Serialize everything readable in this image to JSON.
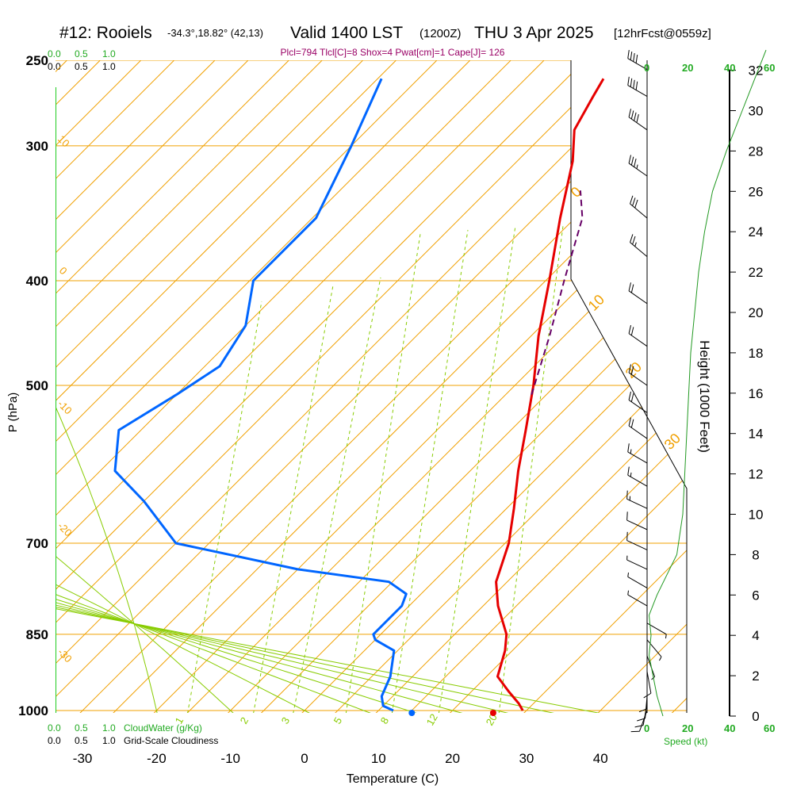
{
  "header": {
    "station": "#12: Rooiels",
    "coords": "-34.3°,18.82° (42,13)",
    "valid": "Valid 1400 LST",
    "zulu": "(1200Z)",
    "date": "THU 3 Apr 2025",
    "forecast": "[12hrFcst@0559z]",
    "indices": "Plcl=794 Tlcl[C]=8 Shox=4 Pwat[cm]=1 Cape[J]= 126"
  },
  "colors": {
    "temperature": "#e60000",
    "dewpoint": "#0066ff",
    "parcel": "#660066",
    "isotherm": "#f0a000",
    "dry_adiabat": "#88cc00",
    "mixing_ratio": "#88cc00",
    "index_text": "#990066",
    "green_label": "#22aa22",
    "height_curve": "#229922"
  },
  "labels": {
    "top_scale_green": [
      "0.0",
      "0.5",
      "1.0"
    ],
    "top_scale_black": [
      "0.0",
      "0.5",
      "1.0"
    ],
    "bottom_scale_green": [
      "0.0",
      "0.5",
      "1.0"
    ],
    "bottom_scale_black": [
      "0.0",
      "0.5",
      "1.0"
    ],
    "cloudwater": "CloudWater (g/Kg)",
    "cloudiness": "Grid-Scale Cloudiness",
    "speed": "Speed (kt)",
    "speed_ticks_green": [
      "20",
      "40",
      "60"
    ],
    "speed_tick_zero": "0",
    "speed_bottom_ticks": [
      "0",
      "20",
      "40",
      "60"
    ]
  },
  "chart_data": {
    "type": "skew-t",
    "xlabel": "Temperature (C)",
    "ylabel": "P (hPa)",
    "y2label": "Height (1000 Feet)",
    "x_ticks": [
      -30,
      -20,
      -10,
      0,
      10,
      20,
      30,
      40
    ],
    "x_range": [
      -34,
      46
    ],
    "p_ticks": [
      250,
      300,
      400,
      500,
      700,
      850,
      1000
    ],
    "p_range": [
      1015,
      250
    ],
    "height_ticks": [
      0,
      2,
      4,
      6,
      8,
      10,
      12,
      14,
      16,
      18,
      20,
      22,
      24,
      26,
      28,
      30,
      32
    ],
    "isotherm_labels": [
      "0",
      "10",
      "20",
      "30",
      "-10",
      "-20",
      "-30",
      "10",
      "0"
    ],
    "mixing_ratio_labels": [
      "1",
      "2",
      "3",
      "5",
      "8",
      "12",
      "20"
    ],
    "temperature": [
      {
        "p": 1000,
        "t": 29.5
      },
      {
        "p": 985,
        "t": 28
      },
      {
        "p": 960,
        "t": 25
      },
      {
        "p": 930,
        "t": 21.5
      },
      {
        "p": 880,
        "t": 19
      },
      {
        "p": 850,
        "t": 17
      },
      {
        "p": 800,
        "t": 12
      },
      {
        "p": 760,
        "t": 8.5
      },
      {
        "p": 700,
        "t": 5
      },
      {
        "p": 650,
        "t": 1
      },
      {
        "p": 600,
        "t": -3.5
      },
      {
        "p": 550,
        "t": -8
      },
      {
        "p": 500,
        "t": -13
      },
      {
        "p": 450,
        "t": -19
      },
      {
        "p": 400,
        "t": -25
      },
      {
        "p": 350,
        "t": -32
      },
      {
        "p": 310,
        "t": -38
      },
      {
        "p": 290,
        "t": -42
      },
      {
        "p": 270,
        "t": -44
      },
      {
        "p": 260,
        "t": -45
      }
    ],
    "dewpoint": [
      {
        "p": 1000,
        "t": 12
      },
      {
        "p": 990,
        "t": 10
      },
      {
        "p": 970,
        "t": 8.5
      },
      {
        "p": 930,
        "t": 7
      },
      {
        "p": 880,
        "t": 4
      },
      {
        "p": 860,
        "t": 0
      },
      {
        "p": 850,
        "t": -1
      },
      {
        "p": 800,
        "t": -1
      },
      {
        "p": 780,
        "t": -2
      },
      {
        "p": 760,
        "t": -6
      },
      {
        "p": 740,
        "t": -20
      },
      {
        "p": 700,
        "t": -40
      },
      {
        "p": 640,
        "t": -50
      },
      {
        "p": 600,
        "t": -58
      },
      {
        "p": 550,
        "t": -63
      },
      {
        "p": 510,
        "t": -60
      },
      {
        "p": 480,
        "t": -58
      },
      {
        "p": 440,
        "t": -60
      },
      {
        "p": 400,
        "t": -65
      },
      {
        "p": 350,
        "t": -65
      },
      {
        "p": 300,
        "t": -70
      },
      {
        "p": 260,
        "t": -75
      }
    ],
    "parcel": [
      {
        "p": 510,
        "t": -12
      },
      {
        "p": 450,
        "t": -17.5
      },
      {
        "p": 400,
        "t": -23
      },
      {
        "p": 350,
        "t": -29
      },
      {
        "p": 330,
        "t": -33
      }
    ],
    "surface_markers": {
      "temperature": 25.5,
      "dewpoint": 14.5
    },
    "wind_barbs": [
      {
        "p": 1000,
        "speed": 10,
        "dir": 200
      },
      {
        "p": 985,
        "speed": 12,
        "dir": 190
      },
      {
        "p": 970,
        "speed": 14,
        "dir": 185
      },
      {
        "p": 950,
        "speed": 12,
        "dir": 180
      },
      {
        "p": 920,
        "speed": 10,
        "dir": 170
      },
      {
        "p": 890,
        "speed": 8,
        "dir": 160
      },
      {
        "p": 860,
        "speed": 6,
        "dir": 140
      },
      {
        "p": 830,
        "speed": 5,
        "dir": 120
      },
      {
        "p": 800,
        "speed": 5,
        "dir": 300
      },
      {
        "p": 770,
        "speed": 6,
        "dir": 300
      },
      {
        "p": 740,
        "speed": 8,
        "dir": 295
      },
      {
        "p": 710,
        "speed": 10,
        "dir": 295
      },
      {
        "p": 680,
        "speed": 12,
        "dir": 295
      },
      {
        "p": 650,
        "speed": 15,
        "dir": 295
      },
      {
        "p": 620,
        "speed": 15,
        "dir": 300
      },
      {
        "p": 590,
        "speed": 18,
        "dir": 300
      },
      {
        "p": 560,
        "speed": 20,
        "dir": 305
      },
      {
        "p": 530,
        "speed": 20,
        "dir": 305
      },
      {
        "p": 500,
        "speed": 20,
        "dir": 305
      },
      {
        "p": 460,
        "speed": 22,
        "dir": 305
      },
      {
        "p": 420,
        "speed": 24,
        "dir": 305
      },
      {
        "p": 380,
        "speed": 28,
        "dir": 310
      },
      {
        "p": 350,
        "speed": 30,
        "dir": 310
      },
      {
        "p": 320,
        "speed": 38,
        "dir": 305
      },
      {
        "p": 290,
        "speed": 42,
        "dir": 305
      },
      {
        "p": 270,
        "speed": 44,
        "dir": 300
      },
      {
        "p": 255,
        "speed": 44,
        "dir": 300
      }
    ],
    "wind_speed_profile": [
      {
        "h": 0,
        "s": 8
      },
      {
        "h": 1,
        "s": 5
      },
      {
        "h": 2,
        "s": 3
      },
      {
        "h": 3,
        "s": 1
      },
      {
        "h": 4,
        "s": 2
      },
      {
        "h": 5,
        "s": 1
      },
      {
        "h": 6,
        "s": 5
      },
      {
        "h": 8,
        "s": 15
      },
      {
        "h": 10,
        "s": 18
      },
      {
        "h": 12,
        "s": 19
      },
      {
        "h": 14,
        "s": 20
      },
      {
        "h": 16,
        "s": 21
      },
      {
        "h": 18,
        "s": 22
      },
      {
        "h": 20,
        "s": 24
      },
      {
        "h": 22,
        "s": 26
      },
      {
        "h": 24,
        "s": 29
      },
      {
        "h": 26,
        "s": 33
      },
      {
        "h": 28,
        "s": 40
      },
      {
        "h": 30,
        "s": 48
      },
      {
        "h": 32,
        "s": 56
      },
      {
        "h": 33,
        "s": 60
      }
    ]
  }
}
